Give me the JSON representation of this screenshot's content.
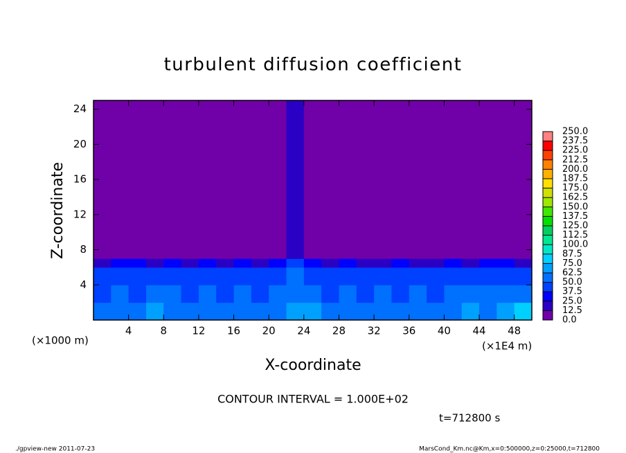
{
  "chart_data": {
    "type": "heatmap",
    "title": "turbulent diffusion coefficient",
    "x_label": "X-coordinate",
    "y_label": "Z-coordinate",
    "x_unit": "(×1000 m)",
    "x_unit_right": "(×1E4 m)",
    "annotation": "CONTOUR INTERVAL = 1.000E+02",
    "time_label": "t=712800 s",
    "footer_left": "./gpview-new  2011-07-23",
    "footer_right": "MarsCond_Km.nc@Km,x=0:500000,z=0:25000,t=712800",
    "xlim": [
      0,
      50
    ],
    "ylim": [
      0,
      25
    ],
    "xticks": [
      4,
      8,
      12,
      16,
      20,
      24,
      28,
      32,
      36,
      40,
      44,
      48
    ],
    "yticks": [
      4,
      8,
      12,
      16,
      20,
      24
    ],
    "xbins": [
      0,
      2,
      4,
      6,
      8,
      10,
      12,
      14,
      16,
      18,
      20,
      22,
      24,
      26,
      28,
      30,
      32,
      34,
      36,
      38,
      40,
      42,
      44,
      46,
      48,
      50
    ],
    "ybins": [
      0,
      2,
      4,
      6,
      7,
      25
    ],
    "values": [
      [
        55,
        60,
        50,
        65,
        55,
        60,
        50,
        60,
        55,
        50,
        60,
        70,
        65,
        55,
        60,
        55,
        50,
        60,
        55,
        60,
        55,
        65,
        60,
        70,
        75
      ],
      [
        45,
        50,
        45,
        55,
        50,
        45,
        50,
        45,
        50,
        45,
        50,
        60,
        55,
        45,
        50,
        45,
        50,
        45,
        50,
        45,
        50,
        55,
        60,
        50,
        55
      ],
      [
        40,
        45,
        40,
        45,
        45,
        40,
        45,
        40,
        45,
        40,
        45,
        50,
        45,
        40,
        45,
        40,
        45,
        40,
        45,
        40,
        45,
        40,
        45,
        45,
        40
      ],
      [
        20,
        25,
        25,
        20,
        25,
        20,
        25,
        20,
        25,
        20,
        25,
        40,
        25,
        20,
        25,
        20,
        20,
        25,
        20,
        20,
        25,
        20,
        25,
        30,
        20
      ],
      [
        0,
        0,
        0,
        0,
        0,
        0,
        0,
        0,
        0,
        0,
        0,
        20,
        0,
        0,
        0,
        0,
        0,
        0,
        0,
        0,
        0,
        0,
        0,
        0,
        0
      ]
    ],
    "colorbar_ticks": [
      {
        "value": 0,
        "label": "0.0"
      },
      {
        "value": 12.5,
        "label": "12.5"
      },
      {
        "value": 25,
        "label": "25.0"
      },
      {
        "value": 37.5,
        "label": "37.5"
      },
      {
        "value": 50,
        "label": "50.0"
      },
      {
        "value": 62.5,
        "label": "62.5"
      },
      {
        "value": 75,
        "label": "75.0"
      },
      {
        "value": 87.5,
        "label": "87.5"
      },
      {
        "value": 100,
        "label": "100.0"
      },
      {
        "value": 112.5,
        "label": "112.5"
      },
      {
        "value": 125,
        "label": "125.0"
      },
      {
        "value": 137.5,
        "label": "137.5"
      },
      {
        "value": 150,
        "label": "150.0"
      },
      {
        "value": 162.5,
        "label": "162.5"
      },
      {
        "value": 175,
        "label": "175.0"
      },
      {
        "value": 187.5,
        "label": "187.5"
      },
      {
        "value": 200,
        "label": "200.0"
      },
      {
        "value": 212.5,
        "label": "212.5"
      },
      {
        "value": 225,
        "label": "225.0"
      },
      {
        "value": 237.5,
        "label": "237.5"
      },
      {
        "value": 250,
        "label": "250.0"
      }
    ],
    "colors": [
      "#7000a8",
      "#2a00c4",
      "#0000ff",
      "#0040ff",
      "#0070ff",
      "#00a0ff",
      "#00d0ff",
      "#00e8c8",
      "#00e890",
      "#00d060",
      "#00e000",
      "#40e800",
      "#a0e600",
      "#d0e000",
      "#ffe000",
      "#ffb000",
      "#ff8000",
      "#ff4000",
      "#ff0000",
      "#ff8080"
    ]
  }
}
